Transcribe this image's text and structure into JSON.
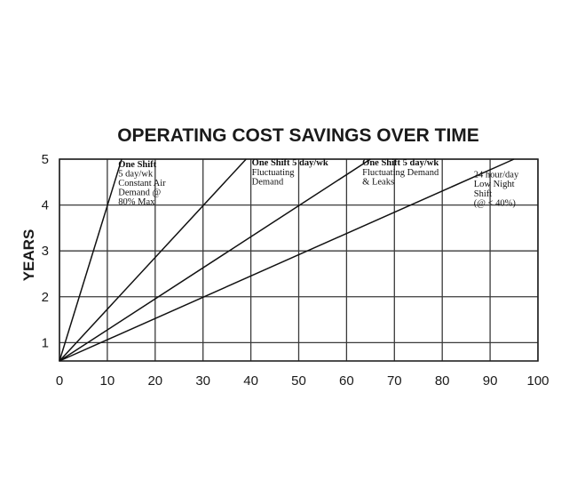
{
  "chart_data": {
    "type": "line",
    "title": "OPERATING COST SAVINGS OVER TIME",
    "ylabel": "YEARS",
    "xlabel": "",
    "xlim": [
      0,
      100
    ],
    "ylim": [
      0.6,
      5
    ],
    "x_ticks": [
      "0",
      "10",
      "20",
      "30",
      "40",
      "50",
      "60",
      "70",
      "80",
      "90",
      "100"
    ],
    "y_ticks": [
      "1",
      "2",
      "3",
      "4",
      "5"
    ],
    "grid": true,
    "series": [
      {
        "points": [
          [
            0,
            0.6
          ],
          [
            13,
            5
          ]
        ]
      },
      {
        "points": [
          [
            0,
            0.6
          ],
          [
            39,
            5
          ]
        ]
      },
      {
        "points": [
          [
            0,
            0.6
          ],
          [
            65,
            5
          ]
        ]
      },
      {
        "points": [
          [
            0,
            0.6
          ],
          [
            95,
            5
          ]
        ]
      }
    ],
    "annotations": [
      {
        "x": 12.3,
        "y": 4.83,
        "lines": [
          "One Shift",
          "5 day/wk",
          "Constant Air",
          "Demand @",
          "80% Max"
        ],
        "bold_lines": 1
      },
      {
        "x": 40.2,
        "y": 4.86,
        "lines": [
          "One Shift 5 day/wk",
          "Fluctuating",
          "Demand"
        ],
        "bold_lines": 1
      },
      {
        "x": 63.3,
        "y": 4.86,
        "lines": [
          "One Shift 5 day/wk",
          "Fluctuating Demand",
          "& Leaks"
        ],
        "bold_lines": 1
      },
      {
        "x": 86.6,
        "y": 4.6,
        "lines": [
          "24 hour/day",
          "Low Night",
          "Shift",
          "(@ < 40%)"
        ],
        "bold_lines": 0
      }
    ]
  }
}
